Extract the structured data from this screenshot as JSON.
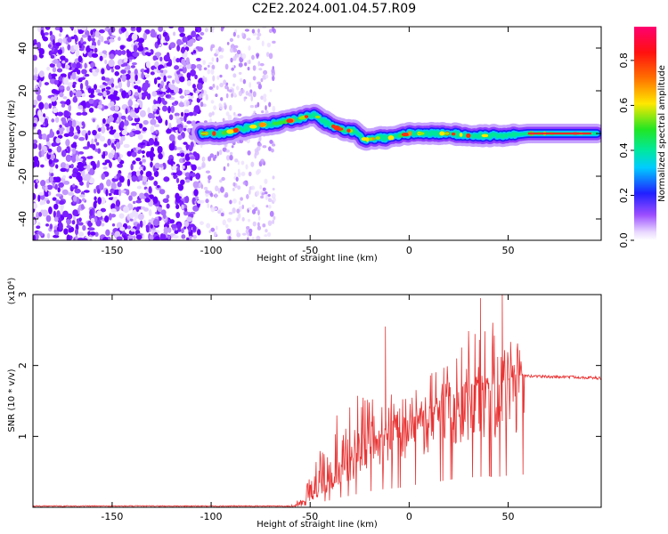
{
  "title": "C2E2.2024.001.04.57.R09",
  "chart_data": [
    {
      "type": "heatmap",
      "xlabel": "Height of straight line (km)",
      "ylabel": "Frequency (Hz)",
      "xlim": [
        -190,
        97
      ],
      "ylim": [
        -50,
        50
      ],
      "xticks": [
        -150,
        -100,
        -50,
        0,
        50
      ],
      "yticks": [
        -40,
        -20,
        0,
        20,
        40
      ],
      "colorbar": {
        "label": "Normalized spectral amplitude",
        "range": [
          0.0,
          0.95
        ],
        "ticks": [
          0.0,
          0.2,
          0.4,
          0.6,
          0.8
        ],
        "colormap": "rainbow (white-violet-blue-cyan-green-yellow-red-magenta)"
      },
      "ridge_frequency_hz": {
        "x": [
          -105,
          -95,
          -85,
          -75,
          -65,
          -55,
          -48,
          -42,
          -35,
          -28,
          -22,
          -15,
          -8,
          0,
          10,
          20,
          30,
          40,
          50,
          60,
          70,
          80,
          90,
          95
        ],
        "y": [
          0,
          0,
          2,
          4,
          5,
          7,
          9,
          5,
          2,
          1,
          -3,
          -2,
          -2,
          0,
          0,
          0,
          -1,
          -1,
          -1,
          0,
          0,
          0,
          0,
          0
        ]
      },
      "noise_region_km": [
        -190,
        -105
      ],
      "sparse_noise_region_km": [
        -105,
        -68
      ]
    },
    {
      "type": "line",
      "xlabel": "Height of straight line (km)",
      "ylabel": "SNR (10 * v/v)",
      "yscale_label": "(x10⁴)",
      "xlim": [
        -190,
        97
      ],
      "ylim": [
        0,
        3
      ],
      "xticks": [
        -150,
        -100,
        -50,
        0,
        50
      ],
      "yticks": [
        1,
        2,
        3
      ],
      "color": "#e83232",
      "envelope": {
        "x": [
          -190,
          -60,
          -55,
          -50,
          -45,
          -40,
          -35,
          -30,
          -25,
          -20,
          -15,
          -10,
          -5,
          0,
          5,
          10,
          15,
          20,
          25,
          30,
          35,
          40,
          45,
          50,
          55,
          60,
          65,
          70,
          80,
          90,
          97
        ],
        "base": [
          0.0,
          0.0,
          0.05,
          0.15,
          0.28,
          0.4,
          0.55,
          0.65,
          0.78,
          0.9,
          1.0,
          1.05,
          1.1,
          1.2,
          1.3,
          1.38,
          1.45,
          1.55,
          1.62,
          1.68,
          1.72,
          1.75,
          1.72,
          1.8,
          1.85,
          1.85,
          1.85,
          1.84,
          1.84,
          1.83,
          1.82
        ],
        "peak": [
          0.02,
          0.03,
          0.2,
          0.45,
          0.8,
          1.0,
          1.5,
          1.45,
          1.7,
          1.6,
          1.5,
          1.75,
          1.6,
          1.65,
          1.7,
          1.85,
          2.0,
          2.1,
          2.2,
          2.5,
          2.6,
          2.8,
          2.7,
          3.0,
          2.3,
          1.95,
          1.9,
          1.87,
          1.86,
          1.85,
          1.83
        ]
      },
      "notable_spikes": [
        {
          "x": -12,
          "y": 2.55
        },
        {
          "x": 36,
          "y": 2.95
        },
        {
          "x": 47,
          "y": 3.05
        }
      ]
    }
  ]
}
